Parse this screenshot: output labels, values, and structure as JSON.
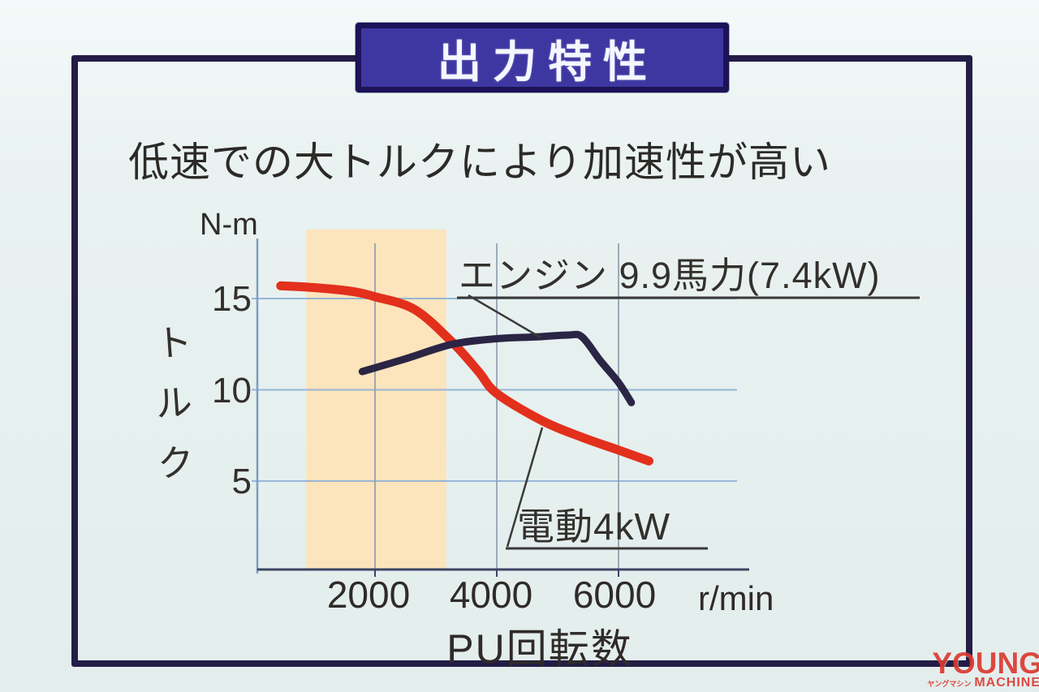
{
  "banner": {
    "title": "出力特性"
  },
  "subtitle": "低速での大トルクにより加速性が高い",
  "chart": {
    "y_unit": "N-m",
    "y_axis_label": "トルク",
    "y_axis_chars": [
      "ト",
      "ル",
      "ク"
    ],
    "x_unit": "r/min",
    "x_axis_label": "PU回転数",
    "engine_label": "エンジン 9.9馬力(7.4kW)",
    "motor_label": "電動4kW"
  },
  "chart_data": {
    "type": "line",
    "title": "出力特性",
    "xlabel": "PU回転数",
    "x_unit": "r/min",
    "ylabel": "トルク",
    "y_unit": "N-m",
    "x_ticks": [
      2000,
      4000,
      6000
    ],
    "y_ticks": [
      15,
      10,
      5
    ],
    "xlim": [
      0,
      8100
    ],
    "ylim": [
      0,
      18
    ],
    "grid": true,
    "legend_position": "inline-annotations",
    "highlight_band": {
      "x_range": [
        870,
        3170
      ],
      "color": "#fce4bc",
      "note": "low-speed large-torque region"
    },
    "series": [
      {
        "name": "電動4kW",
        "color": "#e2301c",
        "x": [
          450,
          1000,
          1600,
          2000,
          2650,
          3270,
          3700,
          4000,
          4750,
          5400,
          6000,
          6500
        ],
        "y": [
          15.7,
          15.6,
          15.4,
          15.1,
          14.4,
          12.6,
          11.0,
          9.8,
          8.3,
          7.4,
          6.7,
          6.1
        ]
      },
      {
        "name": "エンジン 9.9馬力(7.4kW)",
        "color": "#2b2545",
        "x": [
          1790,
          2500,
          3270,
          4000,
          4650,
          5170,
          5400,
          5700,
          6000,
          6210
        ],
        "y": [
          11.0,
          11.7,
          12.5,
          12.8,
          12.9,
          13.0,
          12.9,
          11.6,
          10.4,
          9.3
        ]
      }
    ]
  },
  "watermark": {
    "brand": "YOUNG",
    "brand_kana": "ヤングマシン",
    "brand_sub": "MACHINE",
    "color": "#dc3a31"
  }
}
